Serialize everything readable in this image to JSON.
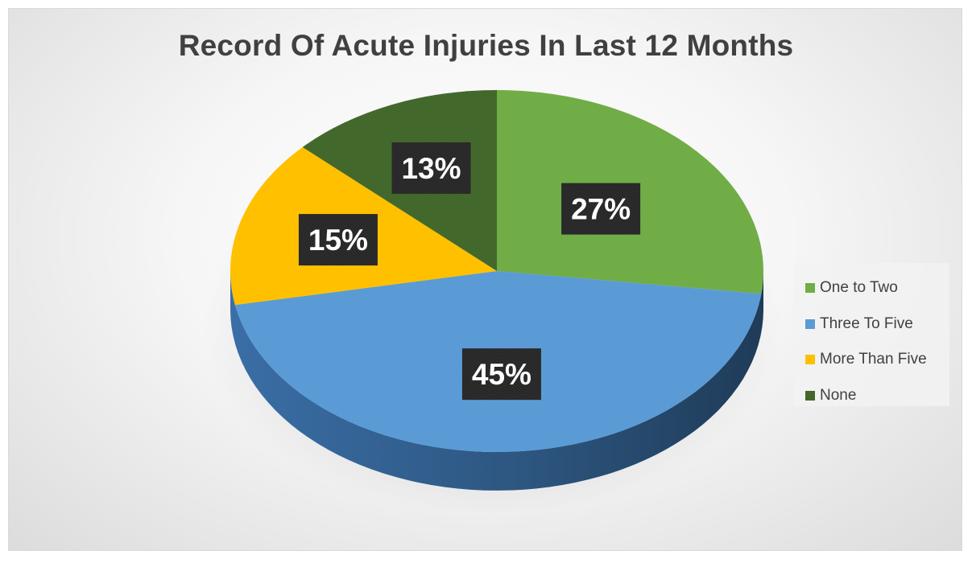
{
  "chart_data": {
    "type": "pie",
    "title": "Record Of Acute Injuries In Last 12 Months",
    "categories": [
      "One to Two",
      "Three To Five",
      "More Than Five",
      "None"
    ],
    "values": [
      27,
      45,
      15,
      13
    ],
    "labels": [
      "27%",
      "45%",
      "15%",
      "13%"
    ],
    "colors": [
      "#70AD47",
      "#5B9BD5",
      "#FFC000",
      "#43682B"
    ],
    "legend_position": "right",
    "style": "3d"
  }
}
